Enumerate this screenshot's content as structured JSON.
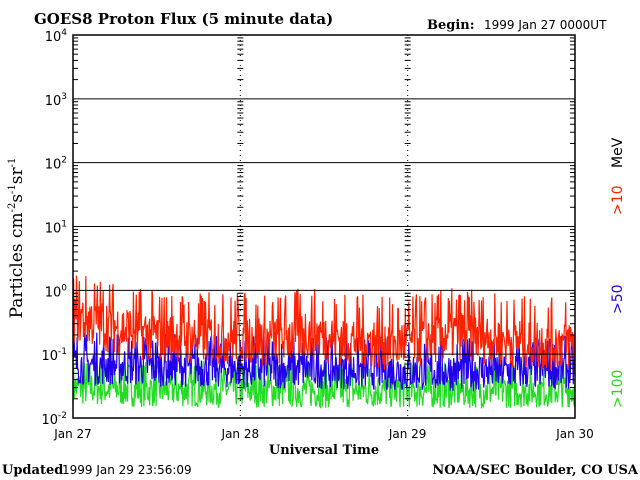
{
  "chart_data": {
    "type": "line",
    "title": "GOES8 Proton Flux (5 minute data)",
    "begin_label": "Begin:",
    "begin_value": "1999 Jan 27 0000UT",
    "ylabel_main": "Particles cm",
    "ylabel_sup1": "-2",
    "ylabel_s": "s",
    "ylabel_sup2": "-1",
    "ylabel_sr": "sr",
    "ylabel_sup3": "-1",
    "xlabel": "Universal Time",
    "yscale": "log",
    "ylim": [
      0.01,
      10000
    ],
    "xlim": [
      0,
      3
    ],
    "y_ticks": [
      {
        "value": 10000,
        "base": "10",
        "exp": "4"
      },
      {
        "value": 1000,
        "base": "10",
        "exp": "3"
      },
      {
        "value": 100,
        "base": "10",
        "exp": "2"
      },
      {
        "value": 10,
        "base": "10",
        "exp": "1"
      },
      {
        "value": 1,
        "base": "10",
        "exp": "0"
      },
      {
        "value": 0.1,
        "base": "10",
        "exp": "-1"
      },
      {
        "value": 0.01,
        "base": "10",
        "exp": "-2"
      }
    ],
    "x_ticks": [
      {
        "value": 0,
        "label": "Jan 27"
      },
      {
        "value": 1,
        "label": "Jan 28"
      },
      {
        "value": 2,
        "label": "Jan 29"
      },
      {
        "value": 3,
        "label": "Jan 30"
      }
    ],
    "legend": [
      {
        "label": ">10",
        "unit": "MeV",
        "color": "#ff2200"
      },
      {
        "label": ">50",
        "color": "#2200ee"
      },
      {
        "label": ">100",
        "color": "#22dd22"
      }
    ],
    "series": [
      {
        "name": ">10 MeV",
        "color": "#ff2200",
        "x_end": 3.0,
        "x": [
          0,
          0.1,
          0.2,
          0.3,
          0.4,
          0.5,
          0.6,
          0.7,
          0.8,
          0.9,
          1.0,
          1.1,
          1.2,
          1.3,
          1.4,
          1.5,
          1.6,
          1.7,
          1.8,
          1.9,
          2.0,
          2.1,
          2.2,
          2.3,
          2.4,
          2.5,
          2.6,
          2.7,
          2.8,
          2.9,
          3.0
        ],
        "values": [
          0.4,
          0.35,
          0.3,
          0.25,
          0.22,
          0.2,
          0.2,
          0.18,
          0.19,
          0.18,
          0.2,
          0.18,
          0.17,
          0.2,
          0.22,
          0.2,
          0.18,
          0.17,
          0.16,
          0.15,
          0.16,
          0.18,
          0.2,
          0.22,
          0.2,
          0.18,
          0.17,
          0.16,
          0.15,
          0.15,
          0.16
        ],
        "spread": 0.55
      },
      {
        "name": ">50",
        "color": "#2200ee",
        "x_end": 3.0,
        "x": [
          0,
          0.5,
          1.0,
          1.5,
          2.0,
          2.5,
          3.0
        ],
        "values": [
          0.07,
          0.065,
          0.06,
          0.06,
          0.055,
          0.055,
          0.06
        ],
        "spread": 0.4
      },
      {
        "name": ">100",
        "color": "#22dd22",
        "x_end": 3.0,
        "x": [
          0,
          0.5,
          1.0,
          1.5,
          2.0,
          2.5,
          3.0
        ],
        "values": [
          0.03,
          0.028,
          0.028,
          0.027,
          0.027,
          0.027,
          0.028
        ],
        "spread": 0.35
      }
    ]
  },
  "footer": {
    "updated_label": "Updated",
    "updated_value": "1999 Jan 29 23:56:09",
    "source": "NOAA/SEC Boulder, CO USA"
  }
}
